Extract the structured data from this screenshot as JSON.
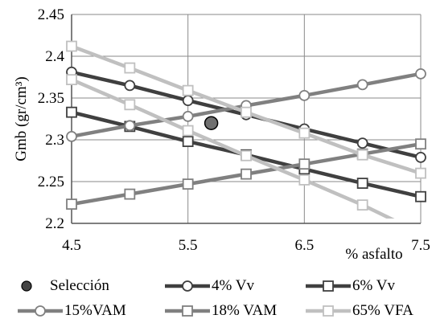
{
  "chart_data": {
    "type": "line",
    "title": "",
    "xlabel": "% asfalto",
    "ylabel": "Gmb (gr/cm³)",
    "xlim": [
      4.5,
      7.5
    ],
    "ylim": [
      2.2,
      2.45
    ],
    "x_ticks": [
      "4.5",
      "5.5",
      "6.5",
      "7.5"
    ],
    "y_ticks": [
      "2.2",
      "2.25",
      "2.3",
      "2.35",
      "2.4",
      "2.45"
    ],
    "grid": true,
    "legend_position": "bottom",
    "series": [
      {
        "name": "4% Vv",
        "marker": "circle",
        "color": "#3f3f3f",
        "points": [
          [
            4.5,
            2.381
          ],
          [
            5.0,
            2.365
          ],
          [
            5.5,
            2.347
          ],
          [
            6.0,
            2.33
          ],
          [
            6.5,
            2.313
          ],
          [
            7.0,
            2.296
          ],
          [
            7.5,
            2.279
          ]
        ]
      },
      {
        "name": "6% Vv",
        "marker": "square",
        "color": "#404040",
        "points": [
          [
            4.5,
            2.333
          ],
          [
            5.0,
            2.316
          ],
          [
            5.5,
            2.298
          ],
          [
            6.0,
            2.282
          ],
          [
            6.5,
            2.265
          ],
          [
            7.0,
            2.248
          ],
          [
            7.5,
            2.232
          ]
        ]
      },
      {
        "name": "15%VAM",
        "marker": "circle",
        "color": "#808080",
        "points": [
          [
            4.5,
            2.304
          ],
          [
            5.0,
            2.317
          ],
          [
            5.5,
            2.328
          ],
          [
            6.0,
            2.341
          ],
          [
            6.5,
            2.353
          ],
          [
            7.0,
            2.366
          ],
          [
            7.5,
            2.379
          ]
        ]
      },
      {
        "name": "18% VAM",
        "marker": "square",
        "color": "#808080",
        "points": [
          [
            4.5,
            2.223
          ],
          [
            5.0,
            2.235
          ],
          [
            5.5,
            2.247
          ],
          [
            6.0,
            2.259
          ],
          [
            6.5,
            2.271
          ],
          [
            7.0,
            2.283
          ],
          [
            7.5,
            2.295
          ]
        ]
      },
      {
        "name": "65% VFA",
        "marker": "square",
        "color": "#c0c0c0",
        "points": [
          [
            4.5,
            2.412
          ],
          [
            5.0,
            2.386
          ],
          [
            5.5,
            2.359
          ],
          [
            6.0,
            2.333
          ],
          [
            6.5,
            2.308
          ],
          [
            7.0,
            2.282
          ],
          [
            7.5,
            2.26
          ]
        ]
      },
      {
        "name": "65% VFA",
        "marker": "square",
        "color": "#c0c0c0",
        "points": [
          [
            4.5,
            2.372
          ],
          [
            5.0,
            2.342
          ],
          [
            5.5,
            2.311
          ],
          [
            6.0,
            2.281
          ],
          [
            6.5,
            2.252
          ],
          [
            7.0,
            2.222
          ],
          [
            7.4,
            2.195
          ]
        ]
      }
    ],
    "selection": {
      "name": "Selección",
      "x": 5.7,
      "y": 2.32,
      "color": "#707070"
    },
    "legend": [
      {
        "label": "Selección",
        "kind": "dot",
        "color": "#707070"
      },
      {
        "label": "4% Vv",
        "kind": "circle",
        "color": "#3f3f3f"
      },
      {
        "label": "6% Vv",
        "kind": "square",
        "color": "#404040"
      },
      {
        "label": "15%VAM",
        "kind": "circle",
        "color": "#808080"
      },
      {
        "label": "18% VAM",
        "kind": "square",
        "color": "#808080"
      },
      {
        "label": "65% VFA",
        "kind": "square",
        "color": "#c0c0c0"
      }
    ]
  }
}
